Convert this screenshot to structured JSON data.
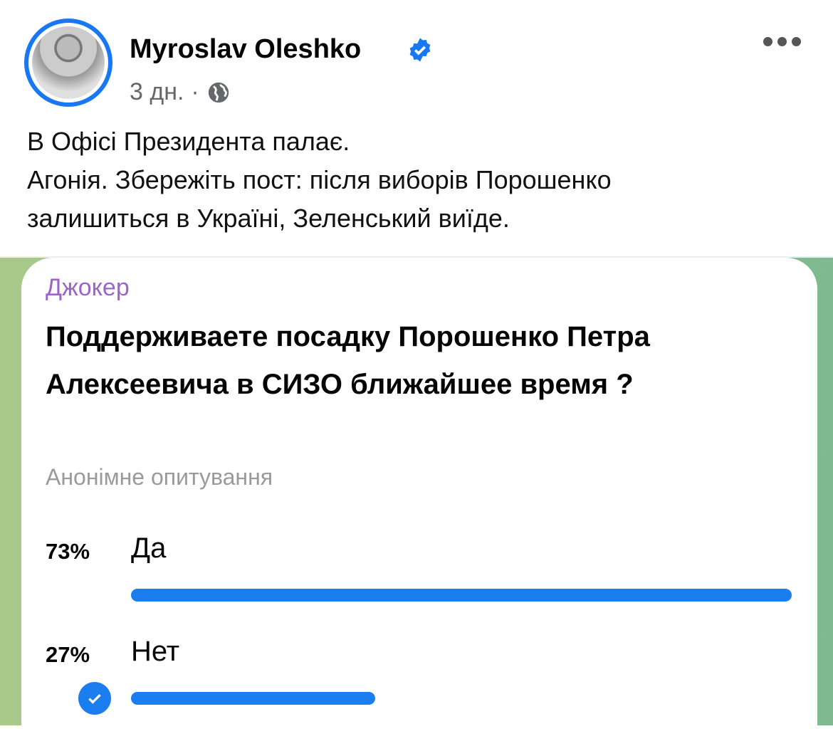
{
  "post": {
    "author": "Myroslav Oleshko",
    "verified": true,
    "time": "3 дн.",
    "separator": "·",
    "audience_icon": "globe-icon",
    "text_lines": [
      "В Офісі Президента палає.",
      "Агонія. Збережіть пост: після виборів Порошенко",
      "залишиться в Україні, Зеленський виїде."
    ]
  },
  "poll": {
    "channel": "Джокер",
    "question": "Поддерживаете посадку Порошенко Петра Алексеевича в СИЗО ближайшее время  ?",
    "type": "Анонімне опитування",
    "options": [
      {
        "percent_label": "73%",
        "label": "Да",
        "percent": 73,
        "chosen": false
      },
      {
        "percent_label": "27%",
        "label": "Нет",
        "percent": 27,
        "chosen": true
      }
    ]
  },
  "colors": {
    "accent": "#1877f2",
    "poll_bar": "#1a7ef0",
    "channel": "#9a66c8"
  }
}
